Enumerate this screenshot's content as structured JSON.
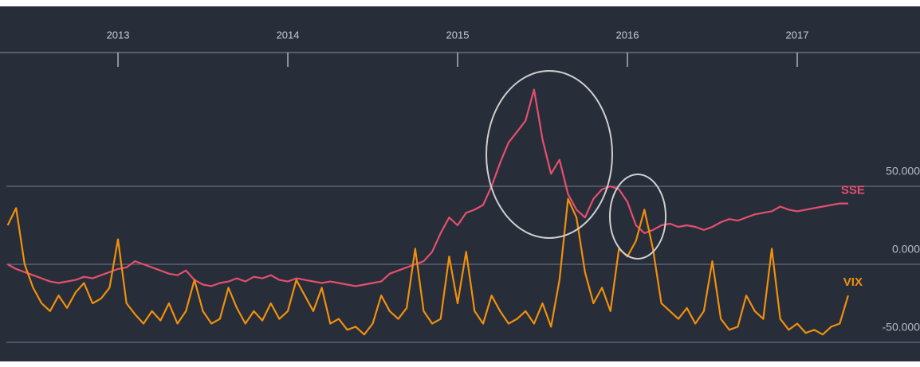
{
  "chart_data": {
    "type": "line",
    "x": [
      2012.35,
      2012.4,
      2012.45,
      2012.5,
      2012.55,
      2012.6,
      2012.65,
      2012.7,
      2012.75,
      2012.8,
      2012.85,
      2012.9,
      2012.95,
      2013.0,
      2013.05,
      2013.1,
      2013.15,
      2013.2,
      2013.25,
      2013.3,
      2013.35,
      2013.4,
      2013.45,
      2013.5,
      2013.55,
      2013.6,
      2013.65,
      2013.7,
      2013.75,
      2013.8,
      2013.85,
      2013.9,
      2013.95,
      2014.0,
      2014.05,
      2014.1,
      2014.15,
      2014.2,
      2014.25,
      2014.3,
      2014.35,
      2014.4,
      2014.45,
      2014.5,
      2014.55,
      2014.6,
      2014.65,
      2014.7,
      2014.75,
      2014.8,
      2014.85,
      2014.9,
      2014.95,
      2015.0,
      2015.05,
      2015.1,
      2015.15,
      2015.2,
      2015.25,
      2015.3,
      2015.35,
      2015.4,
      2015.45,
      2015.5,
      2015.55,
      2015.6,
      2015.65,
      2015.7,
      2015.75,
      2015.8,
      2015.85,
      2015.9,
      2015.95,
      2016.0,
      2016.05,
      2016.1,
      2016.15,
      2016.2,
      2016.25,
      2016.3,
      2016.35,
      2016.4,
      2016.45,
      2016.5,
      2016.55,
      2016.6,
      2016.65,
      2016.7,
      2016.75,
      2016.8,
      2016.85,
      2016.9,
      2016.95,
      2017.0,
      2017.05,
      2017.1,
      2017.15,
      2017.2,
      2017.25,
      2017.3
    ],
    "series": [
      {
        "name": "SSE",
        "color": "#e4506c",
        "values": [
          0,
          -3,
          -5,
          -7,
          -9,
          -11,
          -12,
          -11,
          -10,
          -8,
          -9,
          -7,
          -5,
          -3,
          -2,
          2,
          0,
          -2,
          -4,
          -6,
          -7,
          -4,
          -10,
          -13,
          -14,
          -12,
          -11,
          -9,
          -11,
          -8,
          -9,
          -7,
          -10,
          -11,
          -9,
          -10,
          -11,
          -12,
          -11,
          -12,
          -13,
          -14,
          -13,
          -12,
          -11,
          -6,
          -4,
          -2,
          0,
          2,
          8,
          20,
          30,
          25,
          33,
          35,
          38,
          50,
          65,
          78,
          85,
          92,
          112,
          80,
          58,
          67,
          45,
          35,
          30,
          42,
          48,
          50,
          48,
          40,
          25,
          20,
          22,
          25,
          26,
          24,
          25,
          24,
          22,
          24,
          27,
          29,
          28,
          30,
          32,
          33,
          34,
          37,
          35,
          34,
          35,
          36,
          37,
          38,
          39,
          39
        ]
      },
      {
        "name": "VIX",
        "color": "#f0900c",
        "values": [
          25,
          36,
          0,
          -15,
          -25,
          -30,
          -20,
          -28,
          -18,
          -12,
          -25,
          -22,
          -15,
          16,
          -25,
          -32,
          -38,
          -30,
          -36,
          -25,
          -38,
          -30,
          -10,
          -30,
          -38,
          -35,
          -15,
          -28,
          -38,
          -30,
          -36,
          -25,
          -35,
          -30,
          -10,
          -20,
          -30,
          -15,
          -38,
          -35,
          -42,
          -40,
          -45,
          -38,
          -20,
          -30,
          -35,
          -28,
          10,
          -30,
          -38,
          -35,
          5,
          -25,
          8,
          -30,
          -38,
          -20,
          -30,
          -38,
          -35,
          -30,
          -38,
          -25,
          -40,
          -10,
          42,
          30,
          -5,
          -25,
          -15,
          -30,
          10,
          5,
          15,
          35,
          10,
          -25,
          -30,
          -35,
          -28,
          -38,
          -30,
          2,
          -35,
          -42,
          -40,
          -20,
          -30,
          -35,
          10,
          -35,
          -42,
          -38,
          -44,
          -42,
          -45,
          -40,
          -38,
          -20
        ]
      }
    ],
    "xlim": [
      2012.305,
      2017.723
    ],
    "xticks": [
      2013,
      2014,
      2015,
      2016,
      2017
    ],
    "ylim": [
      -60,
      120
    ],
    "yticks": [
      {
        "value": -50,
        "label": "-50.000"
      },
      {
        "value": 0,
        "label": "0.000"
      },
      {
        "value": 50,
        "label": "50.000"
      }
    ],
    "grid": true
  }
}
